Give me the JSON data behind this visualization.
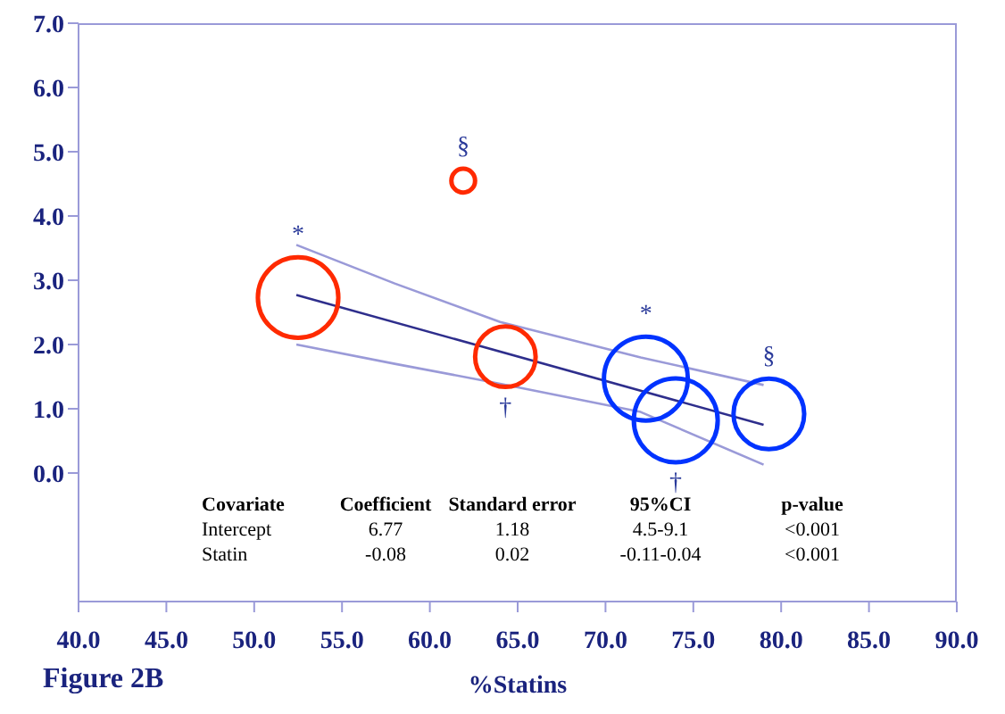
{
  "chart_data": {
    "type": "bubble",
    "xlabel": "%Statins",
    "xlim": [
      40,
      90
    ],
    "ylim": [
      -2,
      7
    ],
    "xticks": [
      {
        "value": 40,
        "label": "40.0"
      },
      {
        "value": 45,
        "label": "45.0"
      },
      {
        "value": 50,
        "label": "50.0"
      },
      {
        "value": 55,
        "label": "55.0"
      },
      {
        "value": 60,
        "label": "60.0"
      },
      {
        "value": 65,
        "label": "65.0"
      },
      {
        "value": 70,
        "label": "70.0"
      },
      {
        "value": 75,
        "label": "75.0"
      },
      {
        "value": 80,
        "label": "80.0"
      },
      {
        "value": 85,
        "label": "85.0"
      },
      {
        "value": 90,
        "label": "90.0"
      }
    ],
    "yticks": [
      {
        "value": 0,
        "label": "0.0"
      },
      {
        "value": 1,
        "label": "1.0"
      },
      {
        "value": 2,
        "label": "2.0"
      },
      {
        "value": 3,
        "label": "3.0"
      },
      {
        "value": 4,
        "label": "4.0"
      },
      {
        "value": 5,
        "label": "5.0"
      },
      {
        "value": 6,
        "label": "6.0"
      },
      {
        "value": 7,
        "label": "7.0"
      }
    ],
    "series": [
      {
        "color": "#ff2a00",
        "x": [
          52.5,
          61.9,
          64.3
        ],
        "values": [
          2.73,
          4.55,
          1.81
        ],
        "sizes": [
          0.92,
          0.08,
          0.52
        ],
        "value_labels": [
          "*",
          "§",
          "†"
        ]
      },
      {
        "color": "#0033ff",
        "x": [
          72.3,
          74.0,
          79.3
        ],
        "values": [
          1.47,
          0.82,
          0.92
        ],
        "sizes": [
          1,
          1,
          0.71
        ],
        "value_labels": [
          "*",
          "†",
          "§"
        ]
      },
      {
        "type": "line",
        "color": "#2e2e8c",
        "marker": "none",
        "x": [
          52.4,
          79
        ],
        "values": [
          2.77,
          0.75
        ]
      },
      {
        "type": "line",
        "color": "#9a9ad8",
        "marker": "none",
        "x": [
          52.4,
          58,
          64,
          72,
          79
        ],
        "values": [
          3.55,
          2.95,
          2.35,
          1.8,
          1.37
        ]
      },
      {
        "type": "line",
        "color": "#9a9ad8",
        "marker": "none",
        "x": [
          52.4,
          58,
          64,
          72,
          79
        ],
        "values": [
          2.0,
          1.7,
          1.39,
          0.95,
          0.13
        ]
      }
    ],
    "annotations": [
      "Covariate",
      "Coefficient",
      "Standard error",
      "95%CI",
      "p-value",
      "Intercept",
      "6.77",
      "1.18",
      "4.5-9.1",
      "<0.001",
      "Statin",
      "-0.08",
      "0.02",
      "-0.11-0.04",
      "<0.001",
      "Figure 2B"
    ]
  }
}
